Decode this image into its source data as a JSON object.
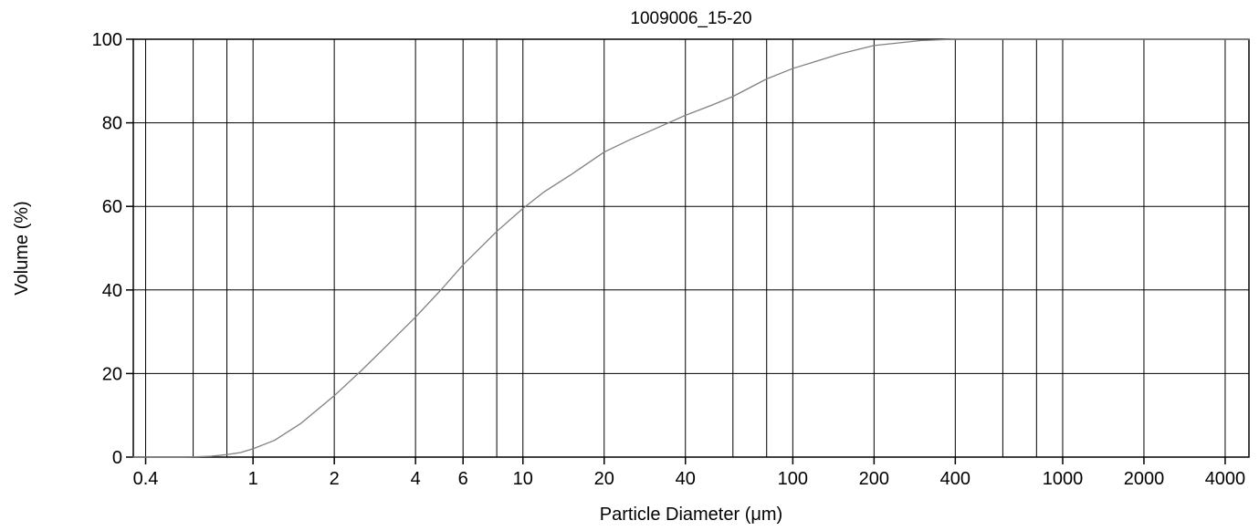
{
  "chart_data": {
    "type": "line",
    "title": "1009006_15-20",
    "xlabel": "Particle Diameter (μm)",
    "ylabel": "Volume (%)",
    "x_scale": "log",
    "xlim": [
      0.36,
      4900
    ],
    "ylim": [
      0,
      100
    ],
    "grid": true,
    "x_ticks": [
      0.4,
      1,
      2,
      4,
      6,
      10,
      20,
      40,
      100,
      200,
      400,
      1000,
      2000,
      4000
    ],
    "x_tick_labels": [
      "0.4",
      "1",
      "2",
      "4",
      "6",
      "10",
      "20",
      "40",
      "100",
      "200",
      "400",
      "1000",
      "2000",
      "4000"
    ],
    "x_gridlines": [
      0.4,
      0.6,
      0.8,
      1,
      2,
      4,
      6,
      8,
      10,
      20,
      40,
      60,
      80,
      100,
      200,
      400,
      600,
      800,
      1000,
      2000,
      4000
    ],
    "y_ticks": [
      0,
      20,
      40,
      60,
      80,
      100
    ],
    "y_tick_labels": [
      "0",
      "20",
      "40",
      "60",
      "80",
      "100"
    ],
    "line_color": "#808080",
    "series": [
      {
        "x": [
          0.36,
          0.5,
          0.6,
          0.7,
          0.8,
          0.9,
          1.0,
          1.2,
          1.5,
          2.0,
          2.5,
          3.0,
          4.0,
          5.0,
          6.0,
          8.0,
          10,
          12,
          15,
          20,
          25,
          30,
          40,
          50,
          60,
          80,
          100,
          150,
          200,
          300,
          400,
          1000,
          4900
        ],
        "y": [
          0,
          0,
          0.05,
          0.2,
          0.6,
          1.1,
          2.0,
          4.0,
          8.0,
          14.7,
          20.5,
          25.5,
          33.5,
          40.2,
          46.0,
          54.0,
          59.5,
          63.5,
          67.5,
          73.0,
          76.0,
          78.2,
          81.8,
          84.2,
          86.3,
          90.5,
          93.0,
          96.5,
          98.5,
          99.7,
          100,
          100,
          100
        ]
      }
    ]
  }
}
